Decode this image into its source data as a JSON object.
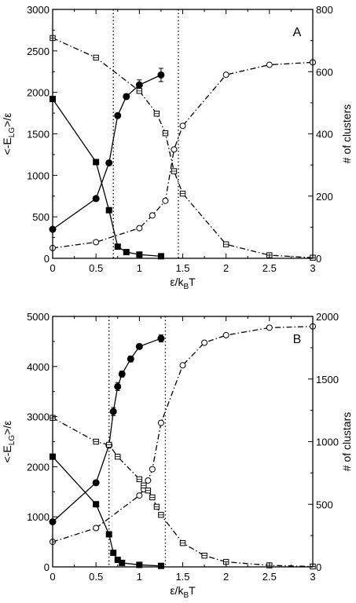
{
  "chart_data": [
    {
      "type": "line",
      "panel_label": "A",
      "xlabel_main": "ε/k",
      "xlabel_sub": "B",
      "xlabel_tail": "T",
      "ylabel_left_pre": "<-E",
      "ylabel_left_sub": "LG",
      "ylabel_left_post": ">/ε",
      "ylabel_right": "# of clusters",
      "xlim": [
        0,
        3
      ],
      "ylim_left": [
        0,
        3000
      ],
      "ylim_right": [
        0,
        800
      ],
      "xticks": [
        "0",
        "0.5",
        "1",
        "1.5",
        "2",
        "2.5",
        "3"
      ],
      "xtick_values": [
        0,
        0.5,
        1,
        1.5,
        2,
        2.5,
        3
      ],
      "yticks_left": [
        "0",
        "500",
        "1000",
        "1500",
        "2000",
        "2500",
        "3000"
      ],
      "ytick_values_left": [
        0,
        500,
        1000,
        1500,
        2000,
        2500,
        3000
      ],
      "yticks_right": [
        "0",
        "200",
        "400",
        "600",
        "800"
      ],
      "ytick_values_right": [
        0,
        200,
        400,
        600,
        800
      ],
      "vlines": [
        0.7,
        1.45
      ],
      "series": [
        {
          "axis": "left",
          "marker": "circle-filled",
          "line": "solid",
          "x": [
            0,
            0.5,
            0.65,
            0.75,
            0.85,
            1.0,
            1.25
          ],
          "y": [
            350,
            720,
            1150,
            1720,
            1950,
            2090,
            2210
          ],
          "err": [
            0,
            0,
            0,
            0,
            30,
            60,
            80
          ]
        },
        {
          "axis": "left",
          "marker": "square-filled",
          "line": "solid",
          "x": [
            0,
            0.5,
            0.65,
            0.75,
            0.85,
            1.0,
            1.25
          ],
          "y": [
            1920,
            1160,
            580,
            140,
            75,
            45,
            25
          ],
          "err": [
            0,
            0,
            0,
            0,
            0,
            0,
            0
          ]
        },
        {
          "axis": "right",
          "marker": "circle-open",
          "line": "dashdot",
          "x": [
            0,
            0.5,
            1.0,
            1.15,
            1.3,
            1.4,
            1.5,
            2.0,
            2.5,
            3.0
          ],
          "y": [
            33,
            52,
            97,
            138,
            185,
            350,
            426,
            590,
            622,
            630
          ]
        },
        {
          "axis": "right",
          "marker": "square-open",
          "line": "dashdot",
          "x": [
            0,
            0.5,
            1.0,
            1.2,
            1.3,
            1.4,
            1.5,
            2.0,
            2.5,
            3.0
          ],
          "y": [
            708,
            645,
            538,
            465,
            402,
            280,
            208,
            45,
            10,
            2
          ]
        }
      ]
    },
    {
      "type": "line",
      "panel_label": "B",
      "xlabel_main": "ε/k",
      "xlabel_sub": "B",
      "xlabel_tail": "T",
      "ylabel_left_pre": "<-E",
      "ylabel_left_sub": "LG",
      "ylabel_left_post": ">/ε",
      "ylabel_right": "# of clustars",
      "xlim": [
        0,
        3
      ],
      "ylim_left": [
        0,
        5000
      ],
      "ylim_right": [
        0,
        2000
      ],
      "xticks": [
        "0",
        "0.5",
        "1",
        "1.5",
        "2",
        "2.5",
        "3"
      ],
      "xtick_values": [
        0,
        0.5,
        1,
        1.5,
        2,
        2.5,
        3
      ],
      "yticks_left": [
        "0",
        "1000",
        "2000",
        "3000",
        "4000",
        "5000"
      ],
      "ytick_values_left": [
        0,
        1000,
        2000,
        3000,
        4000,
        5000
      ],
      "yticks_right": [
        "0",
        "500",
        "1000",
        "1500",
        "2000"
      ],
      "ytick_values_right": [
        0,
        500,
        1000,
        1500,
        2000
      ],
      "vlines": [
        0.65,
        1.3
      ],
      "series": [
        {
          "axis": "left",
          "marker": "circle-filled",
          "line": "solid",
          "x": [
            0,
            0.5,
            0.65,
            0.7,
            0.75,
            0.8,
            0.9,
            1.0,
            1.25
          ],
          "y": [
            900,
            1680,
            2430,
            3100,
            3600,
            3850,
            4150,
            4400,
            4560
          ],
          "err": [
            0,
            0,
            0,
            80,
            80,
            60,
            60,
            50,
            70
          ]
        },
        {
          "axis": "left",
          "marker": "square-filled",
          "line": "solid",
          "x": [
            0,
            0.5,
            0.65,
            0.7,
            0.75,
            0.8,
            1.0,
            1.25
          ],
          "y": [
            2200,
            1250,
            650,
            280,
            140,
            80,
            40,
            20
          ],
          "err": [
            0,
            0,
            0,
            0,
            0,
            0,
            0,
            0
          ]
        },
        {
          "axis": "right",
          "marker": "circle-open",
          "line": "dashdot",
          "x": [
            0,
            0.5,
            1.0,
            1.05,
            1.1,
            1.15,
            1.25,
            1.5,
            1.75,
            2.0,
            2.5,
            3.0
          ],
          "y": [
            200,
            310,
            570,
            620,
            690,
            780,
            1150,
            1610,
            1790,
            1850,
            1910,
            1920
          ]
        },
        {
          "axis": "right",
          "marker": "square-open",
          "line": "dashdot",
          "x": [
            0,
            0.5,
            0.65,
            0.75,
            1.0,
            1.05,
            1.1,
            1.15,
            1.2,
            1.25,
            1.5,
            1.75,
            2.0,
            2.5,
            3.0
          ],
          "y": [
            1190,
            1000,
            975,
            880,
            700,
            650,
            610,
            555,
            480,
            415,
            190,
            90,
            40,
            12,
            3
          ]
        }
      ]
    }
  ]
}
